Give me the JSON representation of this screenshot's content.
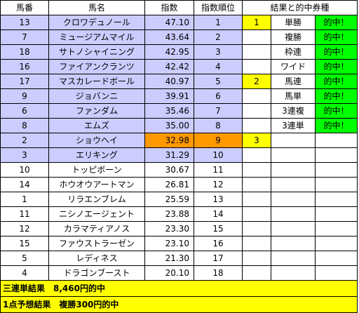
{
  "headers": {
    "umaban": "馬番",
    "horse_name": "馬名",
    "index": "指数",
    "index_rank": "指数順位",
    "result_section": "結果と的中券種"
  },
  "horses": [
    {
      "umaban": "13",
      "name": "クロワデュノール",
      "index": "47.10",
      "rank": "1",
      "finish": "1",
      "bet": "単勝",
      "hit": "的中！"
    },
    {
      "umaban": "7",
      "name": "ミュージアムマイル",
      "index": "43.64",
      "rank": "2",
      "finish": "",
      "bet": "複勝",
      "hit": "的中！"
    },
    {
      "umaban": "18",
      "name": "サトノシャイニング",
      "index": "42.95",
      "rank": "3",
      "finish": "",
      "bet": "枠連",
      "hit": "的中！"
    },
    {
      "umaban": "16",
      "name": "ファイアンクランツ",
      "index": "42.42",
      "rank": "4",
      "finish": "",
      "bet": "ワイド",
      "hit": "的中！"
    },
    {
      "umaban": "17",
      "name": "マスカレードボール",
      "index": "40.97",
      "rank": "5",
      "finish": "2",
      "bet": "馬連",
      "hit": "的中！"
    },
    {
      "umaban": "9",
      "name": "ジョバンニ",
      "index": "39.91",
      "rank": "6",
      "finish": "",
      "bet": "馬単",
      "hit": "的中！"
    },
    {
      "umaban": "6",
      "name": "ファンダム",
      "index": "35.46",
      "rank": "7",
      "finish": "",
      "bet": "3連複",
      "hit": "的中！"
    },
    {
      "umaban": "8",
      "name": "エムズ",
      "index": "35.00",
      "rank": "8",
      "finish": "",
      "bet": "3連単",
      "hit": "的中！"
    },
    {
      "umaban": "2",
      "name": "ショウヘイ",
      "index": "32.98",
      "rank": "9",
      "finish": "3",
      "bet": "",
      "hit": ""
    },
    {
      "umaban": "3",
      "name": "エリキング",
      "index": "31.29",
      "rank": "10",
      "finish": "",
      "bet": "",
      "hit": ""
    },
    {
      "umaban": "10",
      "name": "トッピボーン",
      "index": "30.67",
      "rank": "11",
      "finish": "",
      "bet": "",
      "hit": ""
    },
    {
      "umaban": "14",
      "name": "ホウオウアートマン",
      "index": "26.81",
      "rank": "12",
      "finish": "",
      "bet": "",
      "hit": ""
    },
    {
      "umaban": "1",
      "name": "リラエンブレム",
      "index": "25.59",
      "rank": "13",
      "finish": "",
      "bet": "",
      "hit": ""
    },
    {
      "umaban": "11",
      "name": "ニシノエージェント",
      "index": "23.88",
      "rank": "14",
      "finish": "",
      "bet": "",
      "hit": ""
    },
    {
      "umaban": "12",
      "name": "カラマティアノス",
      "index": "23.30",
      "rank": "15",
      "finish": "",
      "bet": "",
      "hit": ""
    },
    {
      "umaban": "15",
      "name": "ファウストラーゼン",
      "index": "23.10",
      "rank": "16",
      "finish": "",
      "bet": "",
      "hit": ""
    },
    {
      "umaban": "5",
      "name": "レディネス",
      "index": "21.30",
      "rank": "17",
      "finish": "",
      "bet": "",
      "hit": ""
    },
    {
      "umaban": "4",
      "name": "ドラゴンブースト",
      "index": "20.10",
      "rank": "18",
      "finish": "",
      "bet": "",
      "hit": ""
    }
  ],
  "footer": {
    "trifecta_result": "三連単結果　8,460円的中",
    "one_point_result": "1点予想結果　複勝300円的中"
  },
  "colors": {
    "top_ten_highlight": "#ccccff",
    "third_place_highlight": "#ff9900",
    "finish_marker": "#ffff00",
    "hit_marker": "#00ff00",
    "footer": "#ffff00"
  }
}
